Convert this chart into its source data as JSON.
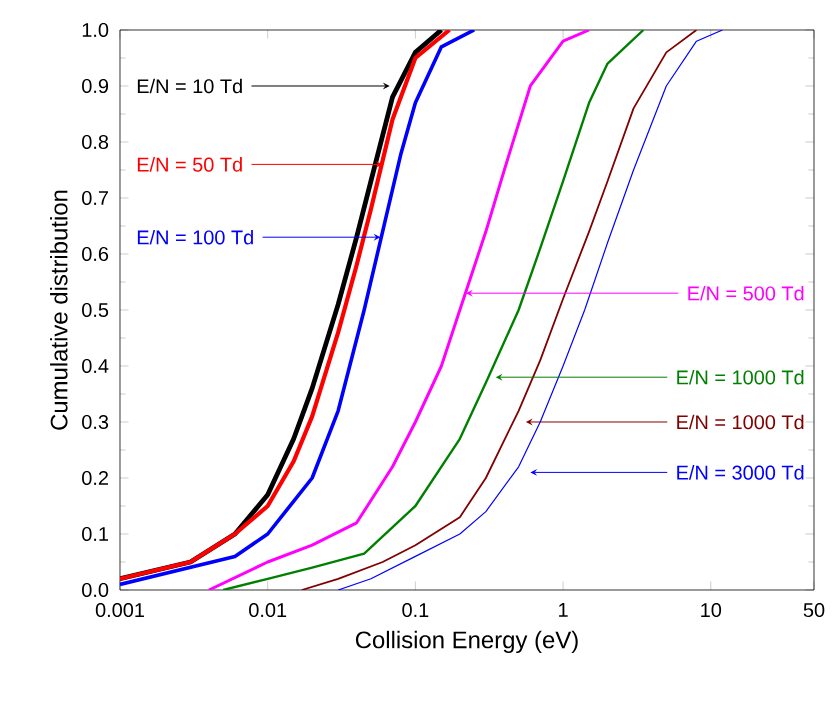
{
  "chart_data": {
    "type": "line",
    "xlabel": "Collision Energy (eV)",
    "ylabel": "Cumulative distribution",
    "log": "x",
    "xlim": [
      0.001,
      50
    ],
    "ylim": [
      0,
      1
    ],
    "xticks": [
      0.001,
      0.01,
      0.1,
      1,
      10,
      50
    ],
    "yticks": [
      {
        "value": 0,
        "label": "0.0"
      },
      {
        "value": 0.1,
        "label": "0.1"
      },
      {
        "value": 0.2,
        "label": "0.2"
      },
      {
        "value": 0.3,
        "label": "0.3"
      },
      {
        "value": 0.4,
        "label": "0.4"
      },
      {
        "value": 0.5,
        "label": "0.5"
      },
      {
        "value": 0.6,
        "label": "0.6"
      },
      {
        "value": 0.7,
        "label": "0.7"
      },
      {
        "value": 0.8,
        "label": "0.8"
      },
      {
        "value": 0.9,
        "label": "0.9"
      },
      {
        "value": 1,
        "label": "1.0"
      }
    ],
    "grid": false,
    "marker": "none",
    "line_style": "solid",
    "series": [
      {
        "color": "#000000",
        "x": [
          0.001,
          0.003,
          0.006,
          0.01,
          0.015,
          0.02,
          0.03,
          0.04,
          0.05,
          0.07,
          0.1,
          0.15
        ],
        "values": [
          0.02,
          0.05,
          0.1,
          0.17,
          0.27,
          0.36,
          0.51,
          0.63,
          0.73,
          0.88,
          0.96,
          1.0
        ]
      },
      {
        "color": "#ff0000",
        "x": [
          0.001,
          0.003,
          0.006,
          0.01,
          0.015,
          0.02,
          0.03,
          0.04,
          0.05,
          0.07,
          0.1,
          0.17
        ],
        "values": [
          0.02,
          0.05,
          0.1,
          0.15,
          0.23,
          0.31,
          0.46,
          0.58,
          0.68,
          0.84,
          0.95,
          1.0
        ]
      },
      {
        "color": "#0000ff",
        "x": [
          0.001,
          0.006,
          0.01,
          0.02,
          0.03,
          0.045,
          0.06,
          0.08,
          0.1,
          0.15,
          0.25
        ],
        "values": [
          0.01,
          0.06,
          0.1,
          0.2,
          0.32,
          0.5,
          0.64,
          0.78,
          0.87,
          0.97,
          1.0
        ]
      },
      {
        "color": "#ff00ff",
        "x": [
          0.004,
          0.01,
          0.02,
          0.04,
          0.07,
          0.1,
          0.15,
          0.2,
          0.3,
          0.4,
          0.6,
          1,
          1.5
        ],
        "values": [
          0,
          0.05,
          0.08,
          0.12,
          0.22,
          0.3,
          0.4,
          0.5,
          0.64,
          0.75,
          0.9,
          0.98,
          1.0
        ]
      },
      {
        "color": "#008000",
        "x": [
          0.005,
          0.01,
          0.02,
          0.045,
          0.1,
          0.2,
          0.3,
          0.5,
          0.7,
          1,
          1.5,
          2,
          3.5
        ],
        "values": [
          0,
          0.02,
          0.04,
          0.065,
          0.15,
          0.27,
          0.37,
          0.5,
          0.61,
          0.73,
          0.87,
          0.94,
          1.0
        ]
      },
      {
        "color": "#800000",
        "x": [
          0.017,
          0.03,
          0.06,
          0.1,
          0.2,
          0.3,
          0.5,
          0.7,
          1,
          1.5,
          2,
          3,
          5,
          8
        ],
        "values": [
          0,
          0.02,
          0.05,
          0.08,
          0.13,
          0.2,
          0.32,
          0.41,
          0.52,
          0.64,
          0.73,
          0.86,
          0.96,
          1.0
        ]
      },
      {
        "color": "#0000ff",
        "x": [
          0.03,
          0.05,
          0.1,
          0.2,
          0.3,
          0.5,
          0.7,
          1,
          1.4,
          2,
          3,
          5,
          8,
          12
        ],
        "values": [
          0,
          0.02,
          0.06,
          0.1,
          0.14,
          0.22,
          0.3,
          0.4,
          0.5,
          0.62,
          0.75,
          0.9,
          0.98,
          1.0
        ]
      }
    ],
    "annotations": [
      {
        "text": "E/N = 10 Td",
        "x": 0.067,
        "y": 0.9
      },
      {
        "text": "E/N = 50 Td",
        "x": 0.06,
        "y": 0.76
      },
      {
        "text": "E/N = 100 Td",
        "x": 0.058,
        "y": 0.63
      },
      {
        "text": "E/N = 500 Td",
        "x": 0.22,
        "y": 0.53
      },
      {
        "text": "E/N = 1000 Td",
        "x": 0.35,
        "y": 0.38
      },
      {
        "text": "E/N = 1000 Td",
        "x": 0.56,
        "y": 0.3
      },
      {
        "text": "E/N = 3000 Td",
        "x": 0.6,
        "y": 0.21
      }
    ]
  }
}
